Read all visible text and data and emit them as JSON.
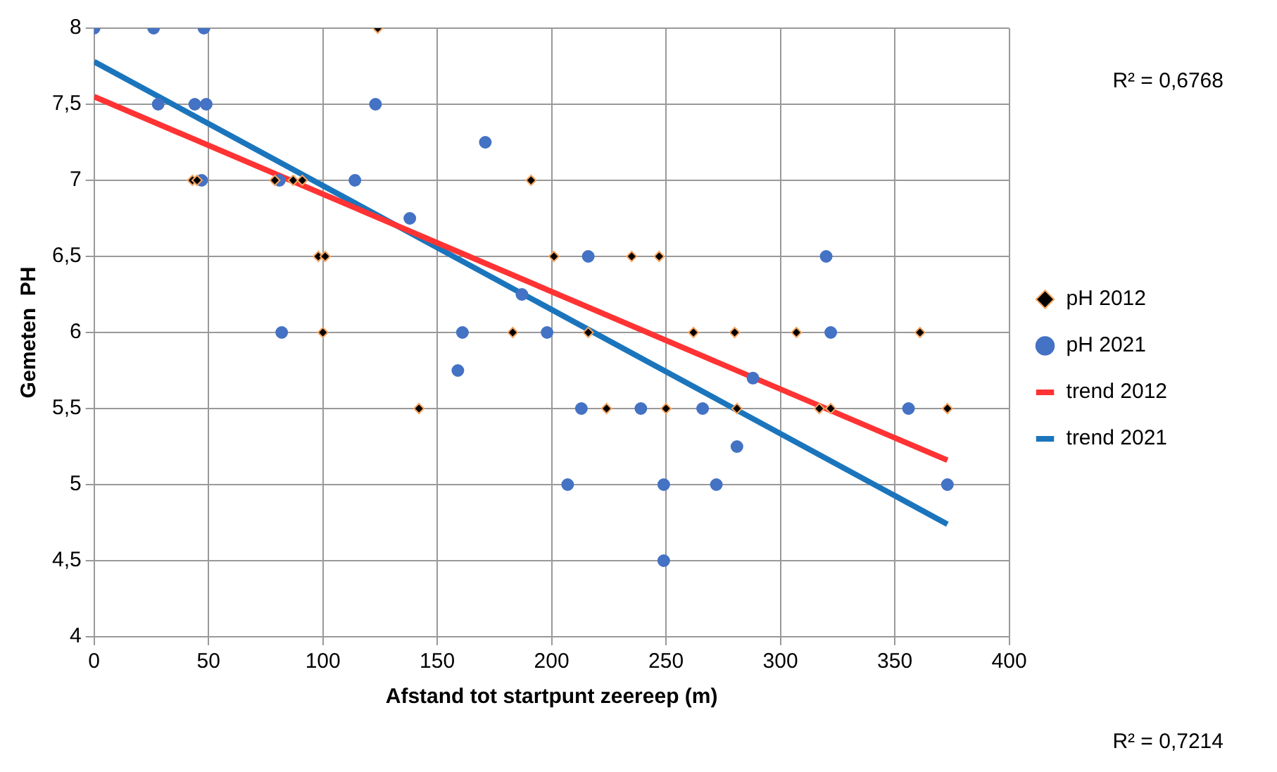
{
  "chart_data": {
    "type": "scatter",
    "xlabel": "Afstand tot startpunt zeereep (m)",
    "ylabel": "Gemeten  PH",
    "xlim": [
      0,
      400
    ],
    "xticks": [
      0,
      50,
      100,
      150,
      200,
      250,
      300,
      350,
      400
    ],
    "ylim": [
      4,
      8
    ],
    "yticks": [
      4,
      {
        "value": 4.5,
        "label": "4,5"
      },
      5,
      {
        "value": 5.5,
        "label": "5,5"
      },
      6,
      {
        "value": 6.5,
        "label": "6,5"
      },
      7,
      {
        "value": 7.5,
        "label": "7,5"
      },
      8
    ],
    "grid": true,
    "legend": "right",
    "annotations": [
      "R² = 0,6768",
      "R² = 0,7214"
    ],
    "series": [
      {
        "name": "pH 2012",
        "marker": "diamond",
        "color": "#000000",
        "x": [
          124,
          43,
          45,
          79,
          87,
          91,
          191,
          98,
          101,
          201,
          235,
          247,
          100,
          183,
          216,
          262,
          280,
          307,
          361,
          142,
          224,
          250,
          281,
          317,
          322,
          373
        ],
        "values": [
          8,
          7,
          7,
          7,
          7,
          7,
          7,
          6.5,
          6.5,
          6.5,
          6.5,
          6.5,
          6,
          6,
          6,
          6,
          6,
          6,
          6,
          5.5,
          5.5,
          5.5,
          5.5,
          5.5,
          5.5,
          5.5
        ]
      },
      {
        "name": "pH 2021",
        "marker": "circle",
        "color": "#4472c4",
        "x": [
          0,
          26,
          48,
          28,
          44,
          49,
          123,
          47,
          81,
          114,
          138,
          171,
          216,
          320,
          187,
          82,
          161,
          198,
          322,
          159,
          288,
          213,
          239,
          266,
          356,
          281,
          207,
          249,
          272,
          373,
          249
        ],
        "values": [
          8,
          8,
          8,
          7.5,
          7.5,
          7.5,
          7.5,
          7,
          7,
          7,
          6.75,
          7.25,
          6.5,
          6.5,
          6.25,
          6,
          6,
          6,
          6,
          5.75,
          5.7,
          5.5,
          5.5,
          5.5,
          5.5,
          5.25,
          5,
          5,
          5,
          5,
          4.5
        ]
      },
      {
        "name": "trend 2012",
        "type": "line",
        "marker": "none",
        "color": "#ff3333",
        "x": [
          0,
          373
        ],
        "values": [
          7.55,
          5.16
        ]
      },
      {
        "name": "trend 2021",
        "type": "line",
        "marker": "none",
        "color": "#1b75bc",
        "x": [
          0,
          373
        ],
        "values": [
          7.78,
          4.74
        ]
      }
    ]
  }
}
